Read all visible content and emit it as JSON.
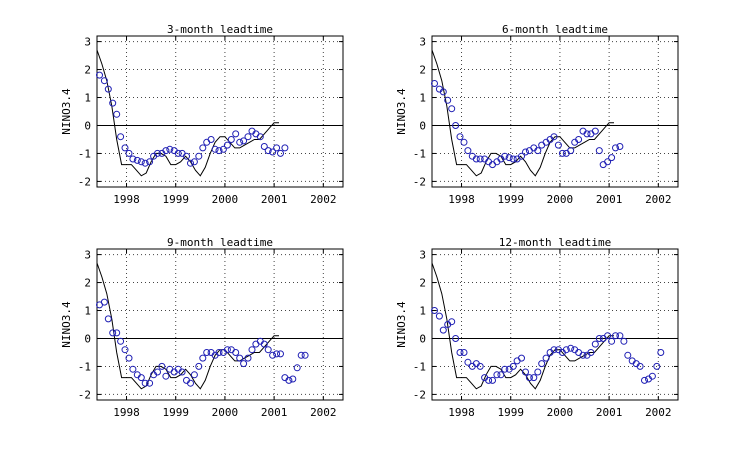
{
  "figure": {
    "background": "#ffffff",
    "colors": {
      "observed_line": "#000000",
      "forecast_markers": "#1f1fb4",
      "grid": "#444444",
      "frame": "#000000"
    }
  },
  "chart_data": [
    {
      "type": "line",
      "title": "3-month leadtime",
      "xlabel": "",
      "ylabel": "NINO3.4",
      "xlim": [
        1997.4,
        2002.4
      ],
      "ylim": [
        -2.2,
        3.2
      ],
      "xticks": [
        1998,
        1999,
        2000,
        2001,
        2002
      ],
      "xtick_labels": [
        "1998",
        "1999",
        "2000",
        "2001",
        "2002"
      ],
      "yticks": [
        -2,
        -1,
        0,
        1,
        2,
        3
      ],
      "ytick_labels": [
        "-2",
        "-1",
        "0",
        "1",
        "2",
        "3"
      ],
      "grid": true,
      "zero_line": true,
      "series": [
        {
          "kind": "line",
          "x": [
            1997.4,
            1997.5,
            1997.6,
            1997.7,
            1997.8,
            1997.9,
            1998.0,
            1998.1,
            1998.2,
            1998.3,
            1998.4,
            1998.5,
            1998.6,
            1998.7,
            1998.8,
            1998.9,
            1999.0,
            1999.1,
            1999.2,
            1999.3,
            1999.4,
            1999.5,
            1999.6,
            1999.7,
            1999.8,
            1999.9,
            2000.0,
            2000.1,
            2000.2,
            2000.3,
            2000.4,
            2000.5,
            2000.6,
            2000.7,
            2000.8,
            2000.9,
            2001.0,
            2001.1
          ],
          "y": [
            2.7,
            2.2,
            1.6,
            0.7,
            -0.5,
            -1.4,
            -1.4,
            -1.4,
            -1.6,
            -1.8,
            -1.7,
            -1.3,
            -1.0,
            -1.0,
            -1.1,
            -1.4,
            -1.4,
            -1.3,
            -1.1,
            -1.3,
            -1.6,
            -1.8,
            -1.5,
            -1.0,
            -0.6,
            -0.4,
            -0.4,
            -0.6,
            -0.8,
            -0.8,
            -0.7,
            -0.6,
            -0.5,
            -0.5,
            -0.3,
            -0.1,
            0.1,
            0.1
          ]
        },
        {
          "kind": "markers",
          "x": [
            1997.45,
            1997.55,
            1997.63,
            1997.72,
            1997.8,
            1997.88,
            1997.97,
            1998.05,
            1998.13,
            1998.22,
            1998.3,
            1998.38,
            1998.47,
            1998.55,
            1998.63,
            1998.72,
            1998.8,
            1998.88,
            1998.97,
            1999.05,
            1999.13,
            1999.22,
            1999.3,
            1999.38,
            1999.47,
            1999.55,
            1999.63,
            1999.72,
            1999.8,
            1999.88,
            1999.97,
            2000.05,
            2000.13,
            2000.22,
            2000.3,
            2000.38,
            2000.47,
            2000.55,
            2000.63,
            2000.72,
            2000.8,
            2000.88,
            2000.97,
            2001.05,
            2001.13,
            2001.22
          ],
          "y": [
            1.8,
            1.6,
            1.3,
            0.8,
            0.4,
            -0.4,
            -0.8,
            -1.0,
            -1.2,
            -1.25,
            -1.3,
            -1.35,
            -1.3,
            -1.1,
            -1.0,
            -1.0,
            -0.9,
            -0.85,
            -0.9,
            -1.0,
            -1.0,
            -1.1,
            -1.35,
            -1.3,
            -1.1,
            -0.8,
            -0.6,
            -0.5,
            -0.85,
            -0.9,
            -0.85,
            -0.7,
            -0.5,
            -0.3,
            -0.6,
            -0.55,
            -0.4,
            -0.2,
            -0.3,
            -0.4,
            -0.75,
            -0.9,
            -0.95,
            -0.8,
            -1.0,
            -0.8
          ]
        }
      ]
    },
    {
      "type": "line",
      "title": "6-month leadtime",
      "xlabel": "",
      "ylabel": "NINO3.4",
      "xlim": [
        1997.4,
        2002.4
      ],
      "ylim": [
        -2.2,
        3.2
      ],
      "xticks": [
        1998,
        1999,
        2000,
        2001,
        2002
      ],
      "xtick_labels": [
        "1998",
        "1999",
        "2000",
        "2001",
        "2002"
      ],
      "yticks": [
        -2,
        -1,
        0,
        1,
        2,
        3
      ],
      "ytick_labels": [
        "-2",
        "-1",
        "0",
        "1",
        "2",
        "3"
      ],
      "grid": true,
      "zero_line": true,
      "series": [
        {
          "kind": "line",
          "x": [
            1997.4,
            1997.5,
            1997.6,
            1997.7,
            1997.8,
            1997.9,
            1998.0,
            1998.1,
            1998.2,
            1998.3,
            1998.4,
            1998.5,
            1998.6,
            1998.7,
            1998.8,
            1998.9,
            1999.0,
            1999.1,
            1999.2,
            1999.3,
            1999.4,
            1999.5,
            1999.6,
            1999.7,
            1999.8,
            1999.9,
            2000.0,
            2000.1,
            2000.2,
            2000.3,
            2000.4,
            2000.5,
            2000.6,
            2000.7,
            2000.8,
            2000.9,
            2001.0,
            2001.1
          ],
          "y": [
            2.7,
            2.2,
            1.6,
            0.7,
            -0.5,
            -1.4,
            -1.4,
            -1.4,
            -1.6,
            -1.8,
            -1.7,
            -1.3,
            -1.0,
            -1.0,
            -1.1,
            -1.4,
            -1.4,
            -1.3,
            -1.1,
            -1.3,
            -1.6,
            -1.8,
            -1.5,
            -1.0,
            -0.6,
            -0.4,
            -0.4,
            -0.6,
            -0.8,
            -0.8,
            -0.7,
            -0.6,
            -0.5,
            -0.5,
            -0.3,
            -0.1,
            0.1,
            0.1
          ]
        },
        {
          "kind": "markers",
          "x": [
            1997.45,
            1997.55,
            1997.63,
            1997.72,
            1997.8,
            1997.88,
            1997.97,
            1998.05,
            1998.13,
            1998.22,
            1998.3,
            1998.38,
            1998.47,
            1998.55,
            1998.63,
            1998.72,
            1998.8,
            1998.88,
            1998.97,
            1999.05,
            1999.13,
            1999.22,
            1999.3,
            1999.38,
            1999.47,
            1999.55,
            1999.63,
            1999.72,
            1999.8,
            1999.88,
            1999.97,
            2000.05,
            2000.13,
            2000.22,
            2000.3,
            2000.38,
            2000.47,
            2000.55,
            2000.63,
            2000.72,
            2000.8,
            2000.88,
            2000.97,
            2001.05,
            2001.13,
            2001.22
          ],
          "y": [
            1.5,
            1.3,
            1.2,
            0.9,
            0.6,
            0.0,
            -0.4,
            -0.6,
            -0.9,
            -1.1,
            -1.2,
            -1.2,
            -1.2,
            -1.3,
            -1.4,
            -1.3,
            -1.2,
            -1.1,
            -1.15,
            -1.2,
            -1.2,
            -1.1,
            -0.95,
            -0.9,
            -0.8,
            -0.9,
            -0.7,
            -0.6,
            -0.5,
            -0.4,
            -0.7,
            -1.0,
            -1.0,
            -0.9,
            -0.6,
            -0.5,
            -0.2,
            -0.3,
            -0.3,
            -0.2,
            -0.9,
            -1.4,
            -1.3,
            -1.15,
            -0.8,
            -0.75
          ]
        }
      ]
    },
    {
      "type": "line",
      "title": "9-month leadtime",
      "xlabel": "",
      "ylabel": "NINO3.4",
      "xlim": [
        1997.4,
        2002.4
      ],
      "ylim": [
        -2.2,
        3.2
      ],
      "xticks": [
        1998,
        1999,
        2000,
        2001,
        2002
      ],
      "xtick_labels": [
        "1998",
        "1999",
        "2000",
        "2001",
        "2002"
      ],
      "yticks": [
        -2,
        -1,
        0,
        1,
        2,
        3
      ],
      "ytick_labels": [
        "-2",
        "-1",
        "0",
        "1",
        "2",
        "3"
      ],
      "grid": true,
      "zero_line": true,
      "series": [
        {
          "kind": "line",
          "x": [
            1997.4,
            1997.5,
            1997.6,
            1997.7,
            1997.8,
            1997.9,
            1998.0,
            1998.1,
            1998.2,
            1998.3,
            1998.4,
            1998.5,
            1998.6,
            1998.7,
            1998.8,
            1998.9,
            1999.0,
            1999.1,
            1999.2,
            1999.3,
            1999.4,
            1999.5,
            1999.6,
            1999.7,
            1999.8,
            1999.9,
            2000.0,
            2000.1,
            2000.2,
            2000.3,
            2000.4,
            2000.5,
            2000.6,
            2000.7,
            2000.8,
            2000.9,
            2001.0,
            2001.1
          ],
          "y": [
            2.7,
            2.2,
            1.6,
            0.7,
            -0.5,
            -1.4,
            -1.4,
            -1.4,
            -1.6,
            -1.8,
            -1.7,
            -1.3,
            -1.0,
            -1.0,
            -1.1,
            -1.4,
            -1.4,
            -1.3,
            -1.1,
            -1.3,
            -1.6,
            -1.8,
            -1.5,
            -1.0,
            -0.6,
            -0.4,
            -0.4,
            -0.6,
            -0.8,
            -0.8,
            -0.7,
            -0.6,
            -0.5,
            -0.5,
            -0.3,
            -0.1,
            0.1,
            0.1
          ]
        },
        {
          "kind": "markers",
          "x": [
            1997.45,
            1997.55,
            1997.63,
            1997.72,
            1997.8,
            1997.88,
            1997.97,
            1998.05,
            1998.13,
            1998.22,
            1998.3,
            1998.38,
            1998.47,
            1998.55,
            1998.63,
            1998.72,
            1998.8,
            1998.88,
            1998.97,
            1999.05,
            1999.13,
            1999.22,
            1999.3,
            1999.38,
            1999.47,
            1999.55,
            1999.63,
            1999.72,
            1999.8,
            1999.88,
            1999.97,
            2000.05,
            2000.13,
            2000.22,
            2000.3,
            2000.38,
            2000.47,
            2000.55,
            2000.63,
            2000.72,
            2000.8,
            2000.88,
            2000.97,
            2001.05,
            2001.13,
            2001.22,
            2001.3,
            2001.38,
            2001.47,
            2001.55,
            2001.63
          ],
          "y": [
            1.2,
            1.3,
            0.7,
            0.2,
            0.2,
            -0.1,
            -0.4,
            -0.7,
            -1.1,
            -1.3,
            -1.4,
            -1.6,
            -1.6,
            -1.3,
            -1.2,
            -1.0,
            -1.35,
            -1.1,
            -1.2,
            -1.1,
            -1.2,
            -1.5,
            -1.6,
            -1.3,
            -1.0,
            -0.7,
            -0.5,
            -0.5,
            -0.6,
            -0.5,
            -0.5,
            -0.4,
            -0.4,
            -0.5,
            -0.7,
            -0.9,
            -0.7,
            -0.4,
            -0.2,
            -0.1,
            -0.2,
            -0.4,
            -0.6,
            -0.55,
            -0.55,
            -1.4,
            -1.5,
            -1.45,
            -1.05,
            -0.6,
            -0.6
          ]
        }
      ]
    },
    {
      "type": "line",
      "title": "12-month leadtime",
      "xlabel": "",
      "ylabel": "NINO3.4",
      "xlim": [
        1997.4,
        2002.4
      ],
      "ylim": [
        -2.2,
        3.2
      ],
      "xticks": [
        1998,
        1999,
        2000,
        2001,
        2002
      ],
      "xtick_labels": [
        "1998",
        "1999",
        "2000",
        "2001",
        "2002"
      ],
      "yticks": [
        -2,
        -1,
        0,
        1,
        2,
        3
      ],
      "ytick_labels": [
        "-2",
        "-1",
        "0",
        "1",
        "2",
        "3"
      ],
      "grid": true,
      "zero_line": true,
      "series": [
        {
          "kind": "line",
          "x": [
            1997.4,
            1997.5,
            1997.6,
            1997.7,
            1997.8,
            1997.9,
            1998.0,
            1998.1,
            1998.2,
            1998.3,
            1998.4,
            1998.5,
            1998.6,
            1998.7,
            1998.8,
            1998.9,
            1999.0,
            1999.1,
            1999.2,
            1999.3,
            1999.4,
            1999.5,
            1999.6,
            1999.7,
            1999.8,
            1999.9,
            2000.0,
            2000.1,
            2000.2,
            2000.3,
            2000.4,
            2000.5,
            2000.6,
            2000.7,
            2000.8,
            2000.9,
            2001.0,
            2001.1
          ],
          "y": [
            2.7,
            2.2,
            1.6,
            0.7,
            -0.5,
            -1.4,
            -1.4,
            -1.4,
            -1.6,
            -1.8,
            -1.7,
            -1.3,
            -1.0,
            -1.0,
            -1.1,
            -1.4,
            -1.4,
            -1.3,
            -1.1,
            -1.3,
            -1.6,
            -1.8,
            -1.5,
            -1.0,
            -0.6,
            -0.4,
            -0.4,
            -0.6,
            -0.8,
            -0.8,
            -0.7,
            -0.6,
            -0.5,
            -0.5,
            -0.3,
            -0.1,
            0.1,
            0.1
          ]
        },
        {
          "kind": "markers",
          "x": [
            1997.45,
            1997.55,
            1997.63,
            1997.72,
            1997.8,
            1997.88,
            1997.97,
            1998.05,
            1998.13,
            1998.22,
            1998.3,
            1998.38,
            1998.47,
            1998.55,
            1998.63,
            1998.72,
            1998.8,
            1998.88,
            1998.97,
            1999.05,
            1999.13,
            1999.22,
            1999.3,
            1999.38,
            1999.47,
            1999.55,
            1999.63,
            1999.72,
            1999.8,
            1999.88,
            1999.97,
            2000.05,
            2000.13,
            2000.22,
            2000.3,
            2000.38,
            2000.47,
            2000.55,
            2000.63,
            2000.72,
            2000.8,
            2000.88,
            2000.97,
            2001.05,
            2001.13,
            2001.22,
            2001.3,
            2001.38,
            2001.47,
            2001.55,
            2001.63,
            2001.72,
            2001.8,
            2001.88,
            2001.97,
            2002.05
          ],
          "y": [
            1.0,
            0.8,
            0.3,
            0.5,
            0.6,
            0.0,
            -0.5,
            -0.5,
            -0.85,
            -1.0,
            -0.9,
            -1.0,
            -1.4,
            -1.5,
            -1.5,
            -1.3,
            -1.3,
            -1.1,
            -1.1,
            -1.0,
            -0.8,
            -0.7,
            -1.2,
            -1.4,
            -1.4,
            -1.2,
            -0.9,
            -0.7,
            -0.5,
            -0.4,
            -0.4,
            -0.5,
            -0.4,
            -0.35,
            -0.4,
            -0.5,
            -0.6,
            -0.6,
            -0.5,
            -0.2,
            0.0,
            0.0,
            0.1,
            -0.1,
            0.1,
            0.1,
            -0.1,
            -0.6,
            -0.8,
            -0.9,
            -1.0,
            -1.5,
            -1.45,
            -1.35,
            -1.0,
            -0.5
          ]
        }
      ]
    }
  ]
}
